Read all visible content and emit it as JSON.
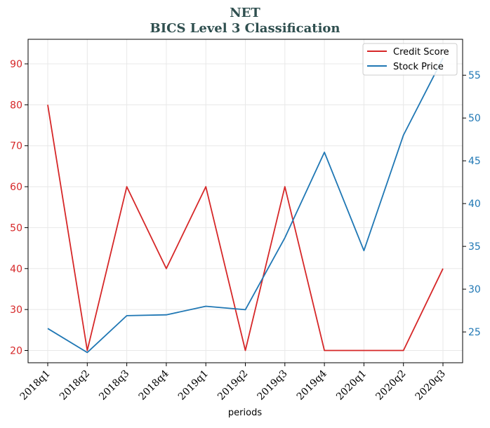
{
  "chart_data": {
    "type": "line",
    "title": "NET",
    "subtitle": "BICS Level 3 Classification",
    "xlabel": "periods",
    "ylabel_left": "",
    "ylabel_right": "",
    "categories": [
      "2018q1",
      "2018q2",
      "2018q3",
      "2018q4",
      "2019q1",
      "2019q2",
      "2019q3",
      "2019q4",
      "2020q1",
      "2020q2",
      "2020q3"
    ],
    "series": [
      {
        "name": "Credit Score",
        "axis": "left",
        "color": "#d62728",
        "values": [
          80,
          20,
          60,
          40,
          60,
          20,
          60,
          20,
          20,
          20,
          40
        ]
      },
      {
        "name": "Stock Price",
        "axis": "right",
        "color": "#1f77b4",
        "values": [
          25.4,
          22.6,
          26.9,
          27.0,
          28.0,
          27.6,
          36.0,
          46.0,
          34.5,
          48.0,
          57.0
        ]
      }
    ],
    "ylim_left": [
      17,
      96
    ],
    "ylim_right": [
      21.4,
      59.2
    ],
    "yticks_left": [
      20,
      30,
      40,
      50,
      60,
      70,
      80,
      90
    ],
    "yticks_right": [
      25,
      30,
      35,
      40,
      45,
      50,
      55
    ],
    "left_tick_color": "#d62728",
    "right_tick_color": "#1f77b4",
    "grid": true,
    "legend_position": "top-right"
  }
}
